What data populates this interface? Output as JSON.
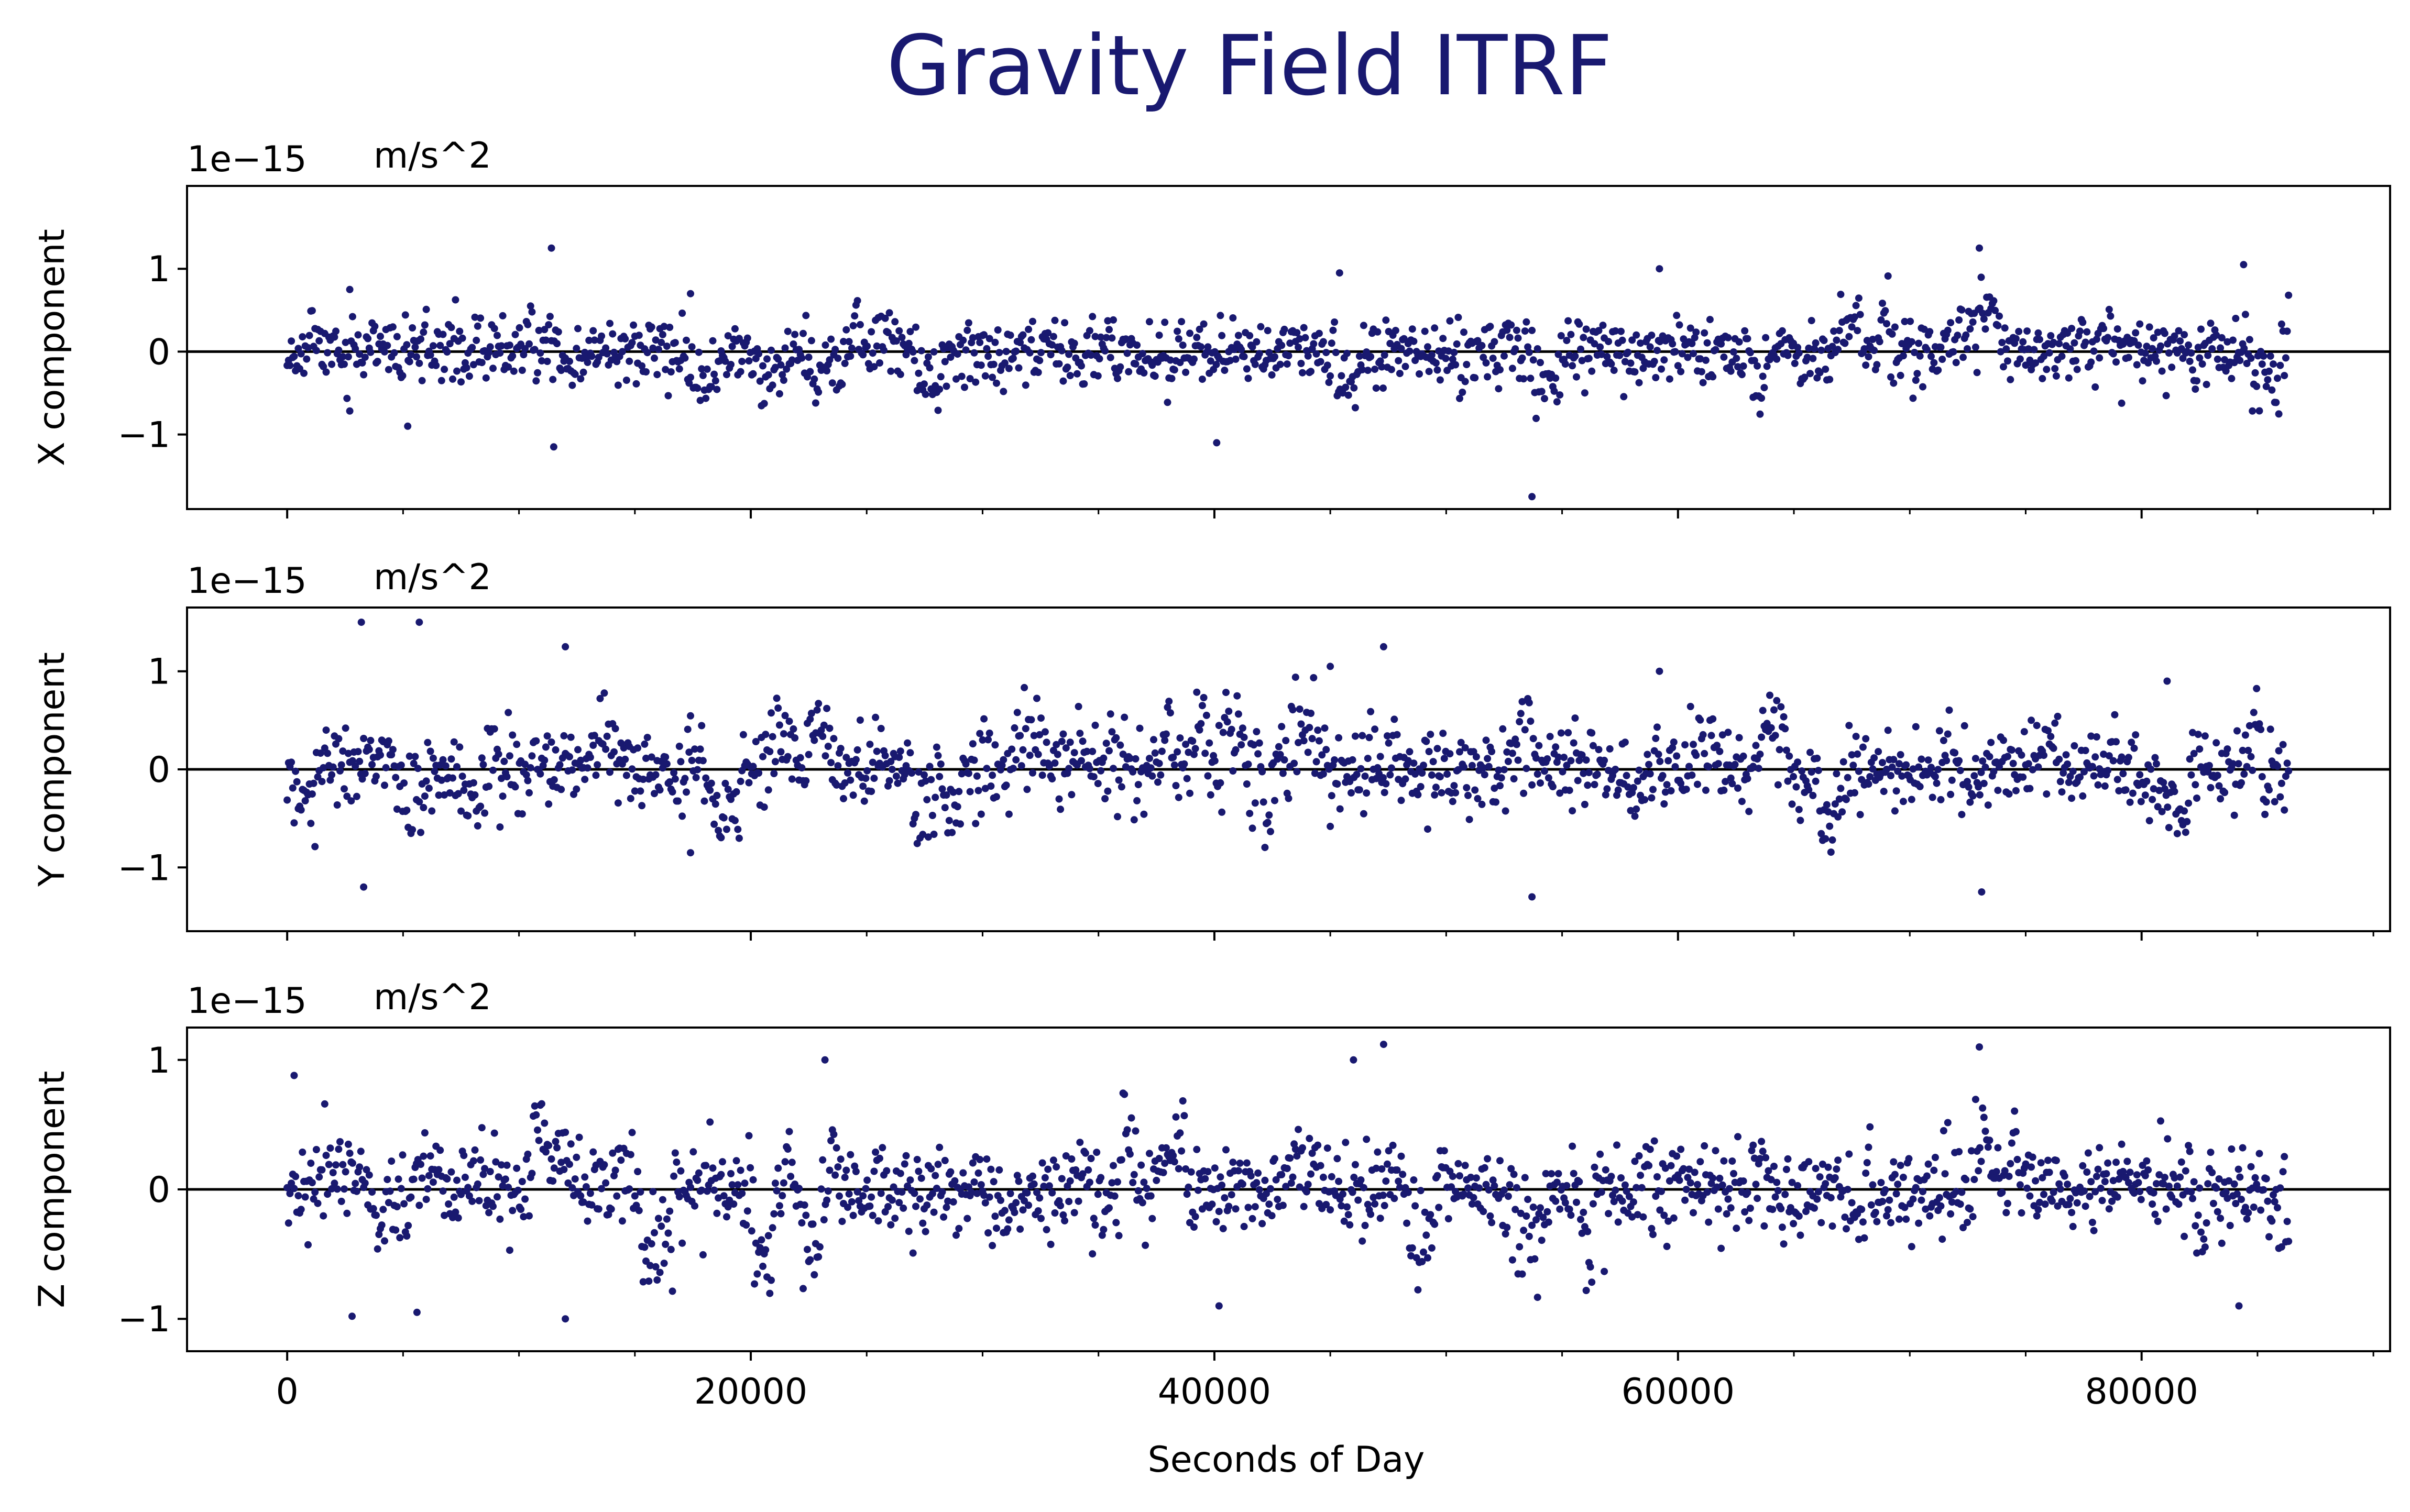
{
  "figure": {
    "title": "Gravity Field ITRF",
    "xlabel": "Seconds of Day",
    "point_color": "#191970",
    "title_color": "#191970"
  },
  "chart_data": [
    {
      "type": "scatter",
      "ylabel": "X component",
      "offset_text": "1e−15",
      "unit_text": "m/s^2",
      "xlim": [
        -4320,
        90720
      ],
      "ylim": [
        -1.9,
        2.0
      ],
      "yticks": [
        -1,
        0,
        1
      ],
      "ytick_labels": [
        "−1",
        "0",
        "1"
      ],
      "xticks": [
        0,
        20000,
        40000,
        60000,
        80000
      ],
      "xtick_labels": [],
      "reference_line": 0,
      "points": {
        "x_start": 0,
        "x_step": 60,
        "count": 1440,
        "seed": 11,
        "base_sd": 0.19,
        "spikes": [
          [
            11400,
            1.25
          ],
          [
            11500,
            -1.15
          ],
          [
            53700,
            -1.75
          ],
          [
            73000,
            1.25
          ],
          [
            84400,
            1.05
          ],
          [
            59200,
            1.0
          ],
          [
            45400,
            0.95
          ],
          [
            40100,
            -1.1
          ],
          [
            5200,
            -0.9
          ],
          [
            2700,
            0.75
          ],
          [
            17400,
            0.7
          ]
        ]
      }
    },
    {
      "type": "scatter",
      "ylabel": "Y component",
      "offset_text": "1e−15",
      "unit_text": "m/s^2",
      "xlim": [
        -4320,
        90720
      ],
      "ylim": [
        -1.65,
        1.65
      ],
      "yticks": [
        -1,
        0,
        1
      ],
      "ytick_labels": [
        "−1",
        "0",
        "1"
      ],
      "xticks": [
        0,
        20000,
        40000,
        60000,
        80000
      ],
      "xtick_labels": [],
      "reference_line": 0,
      "points": {
        "x_start": 0,
        "x_step": 60,
        "count": 1440,
        "seed": 23,
        "base_sd": 0.2,
        "spikes": [
          [
            3200,
            1.5
          ],
          [
            5700,
            1.5
          ],
          [
            3300,
            -1.2
          ],
          [
            12000,
            1.25
          ],
          [
            47300,
            1.25
          ],
          [
            53700,
            -1.3
          ],
          [
            73100,
            -1.25
          ],
          [
            45000,
            1.05
          ],
          [
            59200,
            1.0
          ],
          [
            81100,
            0.9
          ],
          [
            17400,
            -0.85
          ]
        ]
      }
    },
    {
      "type": "scatter",
      "ylabel": "Z component",
      "offset_text": "1e−15",
      "unit_text": "m/s^2",
      "xlim": [
        -4320,
        90720
      ],
      "ylim": [
        -1.25,
        1.25
      ],
      "yticks": [
        -1,
        0,
        1
      ],
      "ytick_labels": [
        "−1",
        "0",
        "1"
      ],
      "xticks": [
        0,
        20000,
        40000,
        60000,
        80000
      ],
      "xtick_labels": [
        "0",
        "20000",
        "40000",
        "60000",
        "80000"
      ],
      "reference_line": 0,
      "points": {
        "x_start": 0,
        "x_step": 60,
        "count": 1440,
        "seed": 37,
        "base_sd": 0.17,
        "spikes": [
          [
            300,
            0.88
          ],
          [
            2800,
            -0.98
          ],
          [
            5600,
            -0.95
          ],
          [
            12000,
            -1.0
          ],
          [
            23200,
            1.0
          ],
          [
            46000,
            1.0
          ],
          [
            47300,
            1.12
          ],
          [
            73000,
            1.1
          ],
          [
            84200,
            -0.9
          ],
          [
            40200,
            -0.9
          ]
        ]
      }
    }
  ]
}
